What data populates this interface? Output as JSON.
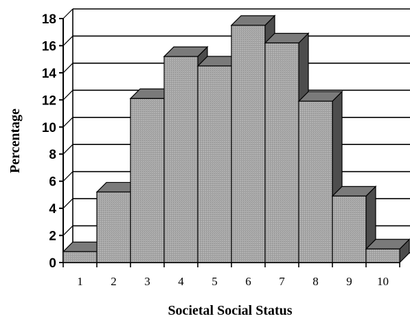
{
  "chart_data": {
    "type": "bar",
    "title": "",
    "xlabel": "Societal Social Status",
    "ylabel": "Percentage",
    "categories": [
      "1",
      "2",
      "3",
      "4",
      "5",
      "6",
      "7",
      "8",
      "9",
      "10"
    ],
    "values": [
      0.8,
      5.2,
      12.1,
      15.2,
      14.5,
      17.5,
      16.2,
      11.9,
      4.9,
      1.0
    ],
    "ylim": [
      0,
      18
    ],
    "yticks": [
      "0",
      "2",
      "4",
      "6",
      "8",
      "10",
      "12",
      "14",
      "16",
      "18"
    ],
    "grid": true,
    "style": "3d",
    "colors": {
      "bar_front": "#a6a6a6",
      "bar_top": "#7a7a7a",
      "bar_side": "#4d4d4d",
      "gridline": "#000000"
    }
  }
}
